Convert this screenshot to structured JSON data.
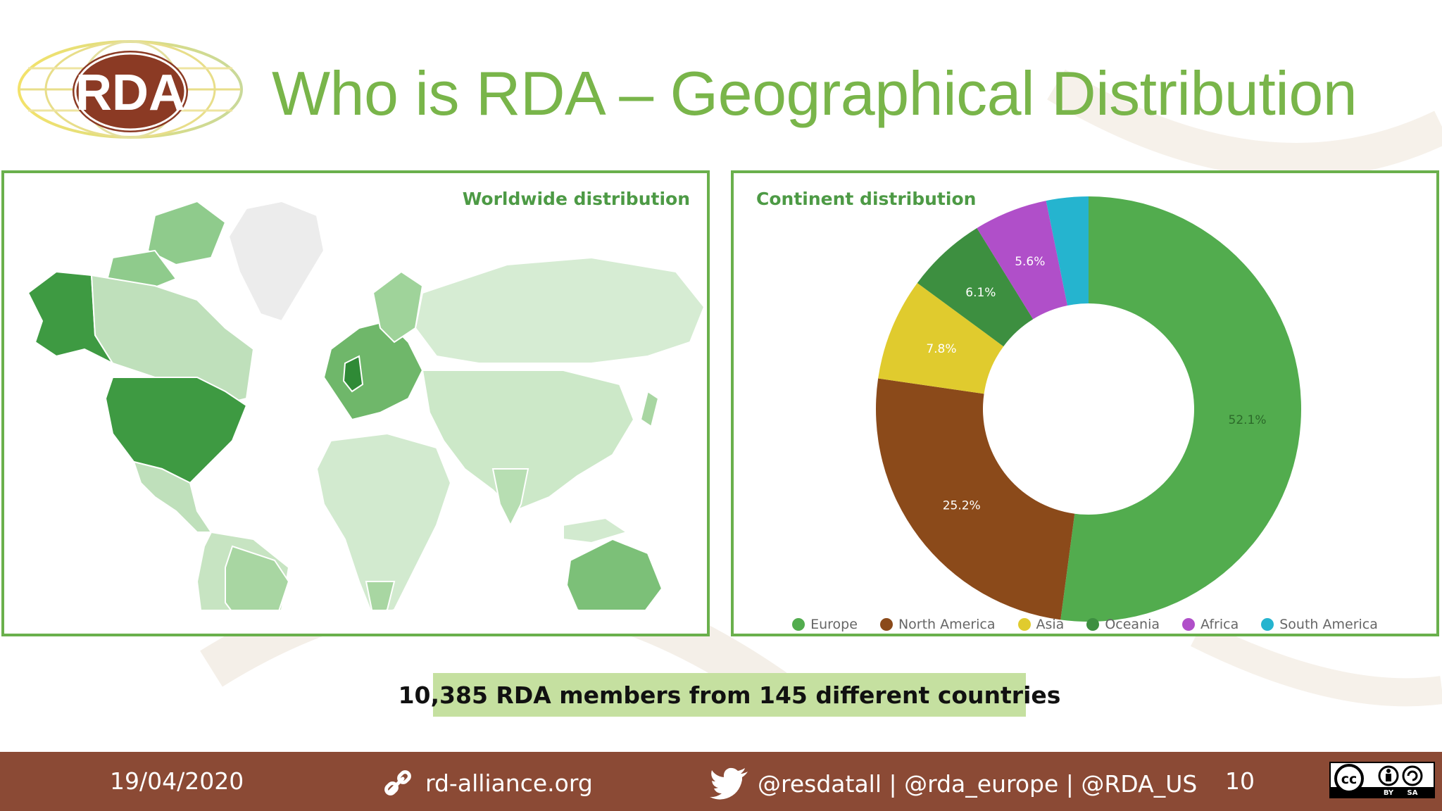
{
  "logo": {
    "text": "RDA"
  },
  "title": "Who is RDA – Geographical Distribution",
  "map_panel": {
    "title": "Worldwide distribution"
  },
  "chart_data": {
    "type": "pie",
    "title": "Continent distribution",
    "donut": true,
    "slices": [
      {
        "label": "Europe",
        "value": 52.1,
        "display": "52.1%",
        "color": "#52ac4e"
      },
      {
        "label": "North America",
        "value": 25.2,
        "display": "25.2%",
        "color": "#8b4a1a"
      },
      {
        "label": "Asia",
        "value": 7.8,
        "display": "7.8%",
        "color": "#e0cb2e"
      },
      {
        "label": "Oceania",
        "value": 6.1,
        "display": "6.1%",
        "color": "#3d8f40"
      },
      {
        "label": "Africa",
        "value": 5.6,
        "display": "5.6%",
        "color": "#b04fc9"
      },
      {
        "label": "South America",
        "value": 3.2,
        "display": "",
        "color": "#25b4cf"
      }
    ],
    "legend": "bottom"
  },
  "banner": "10,385 RDA members from 145 different countries",
  "footer": {
    "date": "19/04/2020",
    "website": "rd-alliance.org",
    "social": "@resdatall | @rda_europe | @RDA_US",
    "page_number": "10",
    "license": {
      "line1": "cc",
      "by": "BY",
      "sa": "SA"
    }
  }
}
